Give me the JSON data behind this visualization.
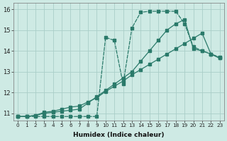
{
  "xlabel": "Humidex (Indice chaleur)",
  "bg_color": "#ceeae4",
  "grid_color": "#aacec8",
  "line_color": "#2a7a6a",
  "xlim": [
    -0.5,
    23.5
  ],
  "ylim": [
    10.65,
    16.3
  ],
  "yticks": [
    11,
    12,
    13,
    14,
    15,
    16
  ],
  "xticks": [
    0,
    1,
    2,
    3,
    4,
    5,
    6,
    7,
    8,
    9,
    10,
    11,
    12,
    13,
    14,
    15,
    16,
    17,
    18,
    19,
    20,
    21,
    22,
    23
  ],
  "curve1_x": [
    0,
    1,
    2,
    3,
    4,
    5,
    6,
    7,
    8,
    9,
    10,
    11,
    12,
    13,
    14,
    15,
    16,
    17,
    18,
    19,
    20,
    21,
    22,
    23
  ],
  "curve1_y": [
    10.85,
    10.85,
    10.85,
    10.85,
    10.85,
    10.85,
    10.85,
    10.85,
    10.85,
    10.85,
    14.65,
    14.5,
    12.4,
    15.1,
    15.85,
    15.9,
    15.9,
    15.9,
    15.9,
    15.3,
    14.2,
    14.0,
    13.85,
    13.7
  ],
  "curve2_x": [
    0,
    1,
    2,
    3,
    4,
    5,
    6,
    7,
    8,
    9,
    10,
    11,
    12,
    13,
    14,
    15,
    16,
    17,
    18,
    19,
    20,
    21,
    22,
    23
  ],
  "curve2_y": [
    10.85,
    10.85,
    10.9,
    11.0,
    11.05,
    11.1,
    11.15,
    11.2,
    11.5,
    11.8,
    12.1,
    12.4,
    12.7,
    13.0,
    13.5,
    14.0,
    14.5,
    15.0,
    15.3,
    15.5,
    14.1,
    14.0,
    13.85,
    13.65
  ],
  "curve3_x": [
    0,
    1,
    2,
    3,
    4,
    5,
    6,
    7,
    8,
    9,
    10,
    11,
    12,
    13,
    14,
    15,
    16,
    17,
    18,
    19,
    20,
    21,
    22,
    23
  ],
  "curve3_y": [
    10.85,
    10.85,
    10.9,
    11.05,
    11.1,
    11.2,
    11.3,
    11.35,
    11.55,
    11.75,
    12.05,
    12.3,
    12.55,
    12.85,
    13.1,
    13.35,
    13.6,
    13.85,
    14.1,
    14.35,
    14.6,
    14.85,
    13.85,
    13.65
  ]
}
